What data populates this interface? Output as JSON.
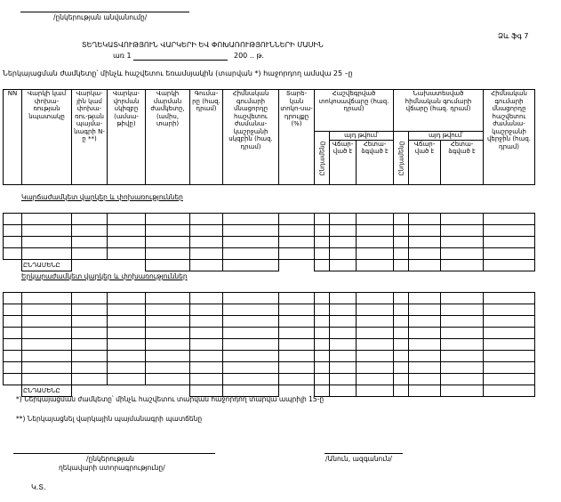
{
  "top": {
    "company_name_caption": "/ընկերության անվանումը/",
    "form_code": "Ձև ֆգ 7",
    "title": "ՏԵՂԵԿԱՏՎՈՒԹՅՈՒՆ ՎԱՐԿԵՐԻ ԵՎ ՓՈԽԱՌՈՒԹՅՈՒՆՆԵՐԻ ՄԱՍԻՆ",
    "date_prefix": "առ 1",
    "date_suffix": "200 .. թ.",
    "deadline": "Ներկայացման ժամկետը՝ մինչև հաշվետու եռամսյակին (տարվան *) հաջորդող  ամսվա 25 –ը"
  },
  "header": {
    "nn": "NN",
    "purpose": "Վարկի կամ փոխա-ռության նպատակը",
    "contract": "Վարկա-յին կամ փոխա-ռու-թյան պայմա-նագրի N-ը **)",
    "start": "Վարկա-վորման սկիզբը (ամսա-թիվը)",
    "maturity": "Վարկի մարման ժամկետը, (ամիս, տարի)",
    "amount": "Գումա-րը (հազ. դրամ)",
    "balance_start": "Հիմնական գումարի մնացորդը հաշվետու ժամանա-կաշրջանի սկզբին (հազ. դրամ)",
    "rate": "Տարե-կան տոկո-սա-դրույքը (%)",
    "accrued": "Հաշվեգրված տոկոսավճարը (հազ. դրամ)",
    "planned": "Նախատեսված հիմնական գումարի վճարը (հազ. դրամ)",
    "balance_end": "Հիմնական գումարի մնացորդը հաշվետու ժամանա-կաշրջանի վերջին (հազ. դրամ)",
    "total": "Ընդամենը",
    "including": "այդ թվում՝",
    "paid": "Վճար-ված է",
    "deferred": "Հետա-ձգված է"
  },
  "sections": [
    {
      "title": "Կարճաժամկետ վարկեր և փոխառություններ",
      "rows": 4,
      "total_label": "ԸՆԴԱՄԵՆԸ"
    },
    {
      "title": "Երկարաժամկետ վարկեր և փոխառություններ",
      "rows": 8,
      "total_label": "ԸՆԴԱՄԵՆԸ"
    }
  ],
  "footnotes": [
    "*) Ներկայացման ժամկետը՝ մինչև հաշվետու տարվան  հաջորդող տարվա ապրիլի 15-ը",
    "**) Ներկայացնել վարկային պայմանագրի պատճենը"
  ],
  "signatures": {
    "head_line1": "/ընկերության",
    "head_line2": "ղեկավարի ստորագրությունը/",
    "name": "/Անուն, ազգանուն/",
    "stamp": "Կ.Տ."
  }
}
